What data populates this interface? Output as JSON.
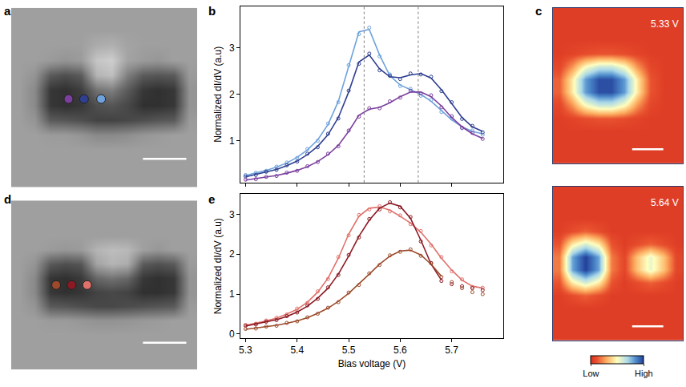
{
  "chart_data": [
    {
      "label": "a",
      "type": "heatmap",
      "tick_labels": false,
      "xlim": [
        -0.5,
        11.5
      ],
      "ylim": [
        11.5,
        -0.5
      ],
      "zlim": [
        0,
        1
      ],
      "z": [
        [
          0.6,
          0.6,
          0.6,
          0.6,
          0.6,
          0.6,
          0.6,
          0.6,
          0.6,
          0.6,
          0.6,
          0.6
        ],
        [
          0.6,
          0.6,
          0.6,
          0.6,
          0.6,
          0.6,
          0.6,
          0.6,
          0.6,
          0.6,
          0.6,
          0.6
        ],
        [
          0.6,
          0.6,
          0.6,
          0.6,
          0.6,
          0.66,
          0.68,
          0.62,
          0.6,
          0.6,
          0.6,
          0.6
        ],
        [
          0.6,
          0.6,
          0.58,
          0.55,
          0.58,
          0.78,
          0.82,
          0.62,
          0.58,
          0.56,
          0.6,
          0.6
        ],
        [
          0.6,
          0.55,
          0.3,
          0.25,
          0.3,
          0.7,
          0.75,
          0.45,
          0.3,
          0.28,
          0.3,
          0.58
        ],
        [
          0.6,
          0.5,
          0.15,
          0.12,
          0.18,
          0.4,
          0.45,
          0.3,
          0.15,
          0.12,
          0.15,
          0.55
        ],
        [
          0.6,
          0.5,
          0.15,
          0.12,
          0.15,
          0.25,
          0.28,
          0.22,
          0.12,
          0.12,
          0.15,
          0.55
        ],
        [
          0.6,
          0.55,
          0.3,
          0.28,
          0.25,
          0.2,
          0.2,
          0.22,
          0.25,
          0.28,
          0.3,
          0.58
        ],
        [
          0.6,
          0.6,
          0.58,
          0.58,
          0.55,
          0.5,
          0.5,
          0.52,
          0.56,
          0.58,
          0.6,
          0.6
        ],
        [
          0.6,
          0.6,
          0.6,
          0.6,
          0.6,
          0.6,
          0.6,
          0.6,
          0.6,
          0.6,
          0.6,
          0.6
        ],
        [
          0.6,
          0.6,
          0.6,
          0.6,
          0.6,
          0.6,
          0.6,
          0.6,
          0.6,
          0.6,
          0.6,
          0.6
        ],
        [
          0.6,
          0.6,
          0.6,
          0.6,
          0.6,
          0.6,
          0.6,
          0.6,
          0.6,
          0.6,
          0.6,
          0.6
        ]
      ],
      "points": {
        "x": [
          3.2,
          4.2,
          5.3
        ],
        "y": [
          5.6,
          5.6,
          5.6
        ],
        "colors": [
          "#7b3f9e",
          "#2f3f8f",
          "#6fa2dd"
        ]
      }
    },
    {
      "label": "b",
      "type": "line",
      "tick_labels": "y",
      "marker": "circle-open",
      "line_style": "solid",
      "xlim": [
        5.29,
        5.8
      ],
      "ylim": [
        0.1,
        3.9
      ],
      "xticks": [
        5.3,
        5.4,
        5.5,
        5.6,
        5.7
      ],
      "yticks": [
        1,
        2,
        3
      ],
      "y_label": "Normalized dI/dV (a.u)",
      "vlines": [
        5.53,
        5.635
      ],
      "x": [
        5.3,
        5.32,
        5.34,
        5.36,
        5.38,
        5.4,
        5.42,
        5.44,
        5.46,
        5.48,
        5.5,
        5.52,
        5.54,
        5.56,
        5.58,
        5.6,
        5.62,
        5.64,
        5.66,
        5.68,
        5.7,
        5.72,
        5.74,
        5.76
      ],
      "series": [
        {
          "color": "#6fa2dd",
          "values": [
            0.26,
            0.31,
            0.35,
            0.44,
            0.53,
            0.63,
            0.82,
            1.0,
            1.37,
            1.83,
            2.63,
            3.3,
            3.44,
            2.82,
            2.43,
            2.18,
            2.12,
            1.97,
            1.88,
            1.62,
            1.48,
            1.27,
            1.22,
            1.13
          ],
          "fit": [
            0.25,
            0.3,
            0.36,
            0.43,
            0.52,
            0.64,
            0.8,
            1.02,
            1.35,
            1.85,
            2.6,
            3.35,
            3.4,
            2.85,
            2.4,
            2.2,
            2.1,
            2.0,
            1.85,
            1.65,
            1.45,
            1.3,
            1.2,
            1.15
          ]
        },
        {
          "color": "#2f3f8f",
          "values": [
            0.23,
            0.26,
            0.33,
            0.37,
            0.47,
            0.55,
            0.72,
            0.86,
            1.15,
            1.48,
            2.08,
            2.66,
            2.88,
            2.52,
            2.4,
            2.33,
            2.45,
            2.43,
            2.38,
            2.07,
            1.83,
            1.47,
            1.32,
            1.18
          ],
          "fit": [
            0.22,
            0.27,
            0.32,
            0.38,
            0.46,
            0.56,
            0.7,
            0.88,
            1.13,
            1.5,
            2.05,
            2.7,
            2.85,
            2.55,
            2.38,
            2.36,
            2.42,
            2.45,
            2.35,
            2.1,
            1.8,
            1.5,
            1.3,
            1.2
          ]
        },
        {
          "color": "#7b3f9e",
          "values": [
            0.16,
            0.17,
            0.22,
            0.24,
            0.31,
            0.35,
            0.45,
            0.54,
            0.72,
            0.88,
            1.22,
            1.52,
            1.7,
            1.7,
            1.85,
            1.93,
            2.08,
            2.02,
            1.98,
            1.72,
            1.53,
            1.28,
            1.17,
            1.04
          ],
          "fit": [
            0.15,
            0.18,
            0.21,
            0.25,
            0.3,
            0.36,
            0.44,
            0.55,
            0.7,
            0.9,
            1.2,
            1.55,
            1.68,
            1.72,
            1.82,
            1.95,
            2.05,
            2.05,
            1.95,
            1.75,
            1.5,
            1.3,
            1.15,
            1.05
          ]
        }
      ]
    },
    {
      "label": "c",
      "type": "heatmap",
      "tick_labels": false,
      "xlim": [
        -0.5,
        9.5
      ],
      "ylim": [
        11.5,
        -0.5
      ],
      "zlim": [
        0,
        1
      ],
      "maps": [
        {
          "title": "5.33 V",
          "z": [
            [
              0.05,
              0.05,
              0.05,
              0.05,
              0.05,
              0.05,
              0.05,
              0.05,
              0.05,
              0.05
            ],
            [
              0.05,
              0.05,
              0.05,
              0.05,
              0.05,
              0.05,
              0.05,
              0.05,
              0.05,
              0.05
            ],
            [
              0.05,
              0.05,
              0.05,
              0.05,
              0.05,
              0.05,
              0.05,
              0.05,
              0.05,
              0.05
            ],
            [
              0.05,
              0.07,
              0.1,
              0.12,
              0.12,
              0.1,
              0.07,
              0.05,
              0.05,
              0.05
            ],
            [
              0.08,
              0.25,
              0.5,
              0.62,
              0.62,
              0.5,
              0.25,
              0.08,
              0.05,
              0.05
            ],
            [
              0.15,
              0.45,
              0.82,
              0.97,
              0.97,
              0.82,
              0.45,
              0.12,
              0.05,
              0.05
            ],
            [
              0.15,
              0.45,
              0.82,
              0.97,
              0.97,
              0.82,
              0.45,
              0.12,
              0.05,
              0.05
            ],
            [
              0.08,
              0.25,
              0.5,
              0.62,
              0.62,
              0.5,
              0.25,
              0.08,
              0.05,
              0.05
            ],
            [
              0.05,
              0.07,
              0.1,
              0.12,
              0.12,
              0.1,
              0.07,
              0.05,
              0.05,
              0.05
            ],
            [
              0.05,
              0.05,
              0.05,
              0.05,
              0.05,
              0.05,
              0.05,
              0.05,
              0.05,
              0.05
            ],
            [
              0.05,
              0.05,
              0.05,
              0.05,
              0.05,
              0.05,
              0.05,
              0.05,
              0.05,
              0.05
            ],
            [
              0.05,
              0.05,
              0.05,
              0.05,
              0.05,
              0.05,
              0.05,
              0.05,
              0.05,
              0.05
            ]
          ]
        },
        {
          "title": "5.64 V",
          "z": [
            [
              0.05,
              0.05,
              0.05,
              0.05,
              0.05,
              0.05,
              0.05,
              0.05,
              0.05,
              0.05
            ],
            [
              0.05,
              0.05,
              0.05,
              0.05,
              0.05,
              0.05,
              0.05,
              0.05,
              0.05,
              0.05
            ],
            [
              0.05,
              0.05,
              0.05,
              0.05,
              0.05,
              0.05,
              0.05,
              0.05,
              0.05,
              0.05
            ],
            [
              0.05,
              0.1,
              0.15,
              0.1,
              0.05,
              0.05,
              0.05,
              0.05,
              0.05,
              0.05
            ],
            [
              0.12,
              0.45,
              0.6,
              0.45,
              0.12,
              0.05,
              0.1,
              0.15,
              0.1,
              0.05
            ],
            [
              0.2,
              0.8,
              1.0,
              0.8,
              0.2,
              0.08,
              0.35,
              0.55,
              0.35,
              0.08
            ],
            [
              0.2,
              0.8,
              1.0,
              0.8,
              0.2,
              0.08,
              0.35,
              0.55,
              0.35,
              0.08
            ],
            [
              0.12,
              0.45,
              0.6,
              0.45,
              0.12,
              0.05,
              0.1,
              0.15,
              0.1,
              0.05
            ],
            [
              0.05,
              0.1,
              0.15,
              0.1,
              0.05,
              0.05,
              0.05,
              0.05,
              0.05,
              0.05
            ],
            [
              0.05,
              0.05,
              0.05,
              0.05,
              0.05,
              0.05,
              0.05,
              0.05,
              0.05,
              0.05
            ],
            [
              0.05,
              0.05,
              0.05,
              0.05,
              0.05,
              0.05,
              0.05,
              0.05,
              0.05,
              0.05
            ],
            [
              0.05,
              0.05,
              0.05,
              0.05,
              0.05,
              0.05,
              0.05,
              0.05,
              0.05,
              0.05
            ]
          ]
        }
      ],
      "colorbar": {
        "range": [
          0,
          1
        ],
        "ticks": [
          {
            "value": 0,
            "label": "Low"
          },
          {
            "value": 1,
            "label": "High"
          }
        ]
      }
    },
    {
      "label": "d",
      "type": "heatmap",
      "tick_labels": false,
      "xlim": [
        -0.5,
        11.5
      ],
      "ylim": [
        11.5,
        -0.5
      ],
      "zlim": [
        0,
        1
      ],
      "z": [
        [
          0.6,
          0.6,
          0.6,
          0.6,
          0.6,
          0.6,
          0.6,
          0.6,
          0.6,
          0.6,
          0.6,
          0.6
        ],
        [
          0.6,
          0.6,
          0.6,
          0.6,
          0.6,
          0.6,
          0.6,
          0.6,
          0.6,
          0.6,
          0.6,
          0.6
        ],
        [
          0.6,
          0.6,
          0.6,
          0.6,
          0.6,
          0.6,
          0.6,
          0.6,
          0.6,
          0.6,
          0.6,
          0.6
        ],
        [
          0.6,
          0.6,
          0.58,
          0.56,
          0.58,
          0.7,
          0.74,
          0.72,
          0.6,
          0.56,
          0.6,
          0.6
        ],
        [
          0.6,
          0.55,
          0.3,
          0.25,
          0.28,
          0.62,
          0.7,
          0.66,
          0.3,
          0.26,
          0.3,
          0.58
        ],
        [
          0.6,
          0.5,
          0.14,
          0.12,
          0.16,
          0.35,
          0.4,
          0.35,
          0.15,
          0.12,
          0.15,
          0.55
        ],
        [
          0.6,
          0.5,
          0.15,
          0.12,
          0.14,
          0.2,
          0.22,
          0.2,
          0.12,
          0.12,
          0.15,
          0.55
        ],
        [
          0.6,
          0.55,
          0.3,
          0.28,
          0.25,
          0.22,
          0.22,
          0.24,
          0.26,
          0.28,
          0.3,
          0.58
        ],
        [
          0.6,
          0.6,
          0.58,
          0.58,
          0.56,
          0.54,
          0.54,
          0.55,
          0.57,
          0.58,
          0.6,
          0.6
        ],
        [
          0.6,
          0.6,
          0.6,
          0.6,
          0.6,
          0.6,
          0.6,
          0.6,
          0.6,
          0.6,
          0.6,
          0.6
        ],
        [
          0.6,
          0.6,
          0.6,
          0.6,
          0.6,
          0.6,
          0.6,
          0.6,
          0.6,
          0.6,
          0.6,
          0.6
        ],
        [
          0.6,
          0.6,
          0.6,
          0.6,
          0.6,
          0.6,
          0.6,
          0.6,
          0.6,
          0.6,
          0.6,
          0.6
        ]
      ],
      "points": {
        "x": [
          2.4,
          3.4,
          4.4
        ],
        "y": [
          5.5,
          5.5,
          5.5
        ],
        "colors": [
          "#9c4a2b",
          "#8b1a24",
          "#e0706a"
        ]
      }
    },
    {
      "label": "e",
      "type": "line",
      "tick_labels": true,
      "marker": "circle-open",
      "line_style": "solid",
      "xlim": [
        5.29,
        5.8
      ],
      "ylim": [
        -0.1,
        3.5
      ],
      "xticks": [
        5.3,
        5.4,
        5.5,
        5.6,
        5.7
      ],
      "yticks": [
        0,
        1,
        2,
        3
      ],
      "x_label": "Bias voltage (V)",
      "y_label": "Normalized dI/dV (a.u)",
      "x": [
        5.3,
        5.32,
        5.34,
        5.36,
        5.38,
        5.4,
        5.42,
        5.44,
        5.46,
        5.48,
        5.5,
        5.52,
        5.54,
        5.56,
        5.58,
        5.6,
        5.62,
        5.64,
        5.66,
        5.68,
        5.7,
        5.72,
        5.74,
        5.76
      ],
      "series": [
        {
          "color": "#e0706a",
          "values": [
            0.23,
            0.26,
            0.34,
            0.41,
            0.49,
            0.64,
            0.78,
            1.07,
            1.38,
            1.93,
            2.47,
            2.98,
            3.12,
            3.2,
            3.07,
            2.97,
            2.75,
            2.58,
            2.22,
            1.93,
            1.57,
            1.37,
            1.18,
            1.16
          ],
          "fit": [
            0.22,
            0.27,
            0.33,
            0.4,
            0.5,
            0.62,
            0.8,
            1.05,
            1.4,
            1.9,
            2.5,
            2.95,
            3.15,
            3.18,
            3.1,
            2.95,
            2.78,
            2.55,
            2.25,
            1.9,
            1.6,
            1.35,
            1.2,
            1.15
          ]
        },
        {
          "color": "#8b1a24",
          "values": [
            0.21,
            0.24,
            0.31,
            0.35,
            0.45,
            0.54,
            0.72,
            0.88,
            1.17,
            1.48,
            1.98,
            2.42,
            2.88,
            3.12,
            3.3,
            3.17,
            2.93,
            2.32,
            1.78,
            1.33,
            1.25,
            1.2,
            1.15,
            1.1
          ],
          "fit": [
            0.2,
            0.25,
            0.3,
            0.36,
            0.44,
            0.55,
            0.7,
            0.9,
            1.15,
            1.5,
            1.95,
            2.45,
            2.85,
            3.15,
            3.28,
            3.2,
            2.9,
            2.35,
            1.75,
            1.35,
            null,
            null,
            null,
            null
          ]
        },
        {
          "color": "#9c4a2b",
          "values": [
            0.13,
            0.14,
            0.19,
            0.21,
            0.28,
            0.32,
            0.42,
            0.51,
            0.66,
            0.8,
            1.04,
            1.23,
            1.52,
            1.73,
            1.97,
            2.06,
            2.12,
            1.96,
            1.77,
            1.43,
            1.3,
            1.15,
            1.05,
            1.0
          ],
          "fit": [
            0.12,
            0.15,
            0.18,
            0.22,
            0.27,
            0.33,
            0.41,
            0.52,
            0.65,
            0.82,
            1.02,
            1.25,
            1.5,
            1.75,
            1.95,
            2.08,
            2.1,
            1.98,
            1.75,
            1.45,
            null,
            null,
            null,
            null
          ]
        }
      ]
    }
  ]
}
